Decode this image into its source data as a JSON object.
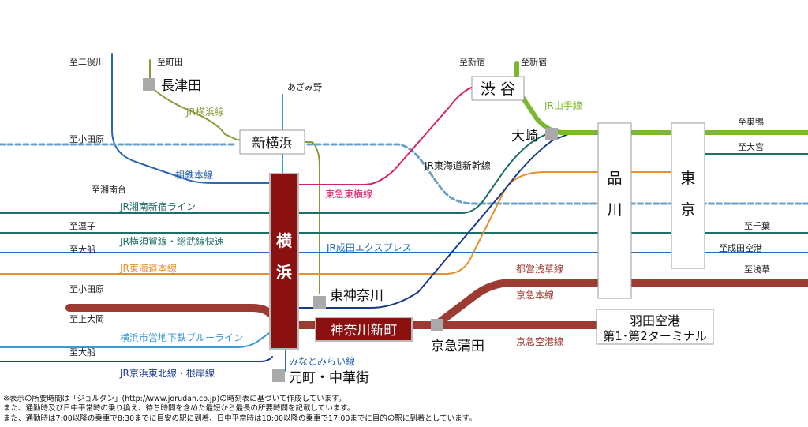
{
  "directions": {
    "nimatagawa": "至二俣川",
    "machida": "至町田",
    "shinjuku": "至新宿",
    "shinjuku2": "至新宿",
    "odawara_top": "至小田原",
    "shonandai": "至湘南台",
    "zushi": "至逗子",
    "ofuna_top": "至大船",
    "odawara_mid": "至小田原",
    "kamiooka": "至上大岡",
    "ofuna_bottom": "至大船",
    "sugamo": "至巣鴨",
    "omiya": "至大宮",
    "chiba": "至千葉",
    "narita": "至成田空港",
    "asakusa": "至浅草"
  },
  "stations": {
    "nagatsuta": "長津田",
    "azamino": "あざみ野",
    "shin_yokohama": "新横浜",
    "shibuya": "渋 谷",
    "osaki": "大崎",
    "shinagawa": [
      "品",
      "川"
    ],
    "tokyo": [
      "東",
      "京"
    ],
    "yokohama": [
      "横",
      "浜"
    ],
    "higashi_kanagawa": "東神奈川",
    "kanagawa_shinmachi": "神奈川新町",
    "keikyu_kamata": "京急蒲田",
    "motomachi": "元町・中華街",
    "haneda": [
      "羽田空港",
      "第1･第2ターミナル"
    ]
  },
  "lines": {
    "jr_yokohama": "JR横浜線",
    "jr_yamanote": "JR山手線",
    "sotetsu": "相鉄本線",
    "tokyu_toyoko": "東急東横線",
    "jr_tokaido_shinkansen": "JR東海道新幹線",
    "jr_shonan_shinjuku": "JR湘南新宿ライン",
    "jr_yokosuka_sobu": "JR横須賀線・総武線快速",
    "jr_narita_express": "JR成田エクスプレス",
    "jr_tokaido": "JR東海道本線",
    "toei_asakusa": "都営浅草線",
    "keikyu_main": "京急本線",
    "blue_line": "横浜市営地下鉄ブルーライン",
    "keikyu_airport": "京急空港線",
    "minatomirai": "みなとみらい線",
    "jr_keihin_tohoku": "JR京浜東北線・根岸線"
  },
  "colors": {
    "sotetsu": "#2a67b1",
    "olive": "#8a9a3a",
    "magenta": "#d1246e",
    "teal": "#1f6e68",
    "orange": "#e8902b",
    "sky": "#3a9ad8",
    "green": "#7ab830",
    "navy": "#1a3a8a",
    "keikyu": "#9c3b32",
    "yokohama_box": "#8b1111",
    "shinkansen": "#6aa0c8"
  },
  "notes": [
    "※表示の所要時間は「ジョルダン」(http://www.jorudan.co.jp)の時刻表に基づいて作成しています。",
    "また、通勤時及び日中平常時の乗り換え、待ち時間を含めた最短から最長の所要時間を記載しています。",
    "また、通勤時は7:00以降の乗車で8:30までに目安の駅に到着、日中平常時は10:00以降の乗車で17:00までに目的の駅に到着としています。"
  ]
}
